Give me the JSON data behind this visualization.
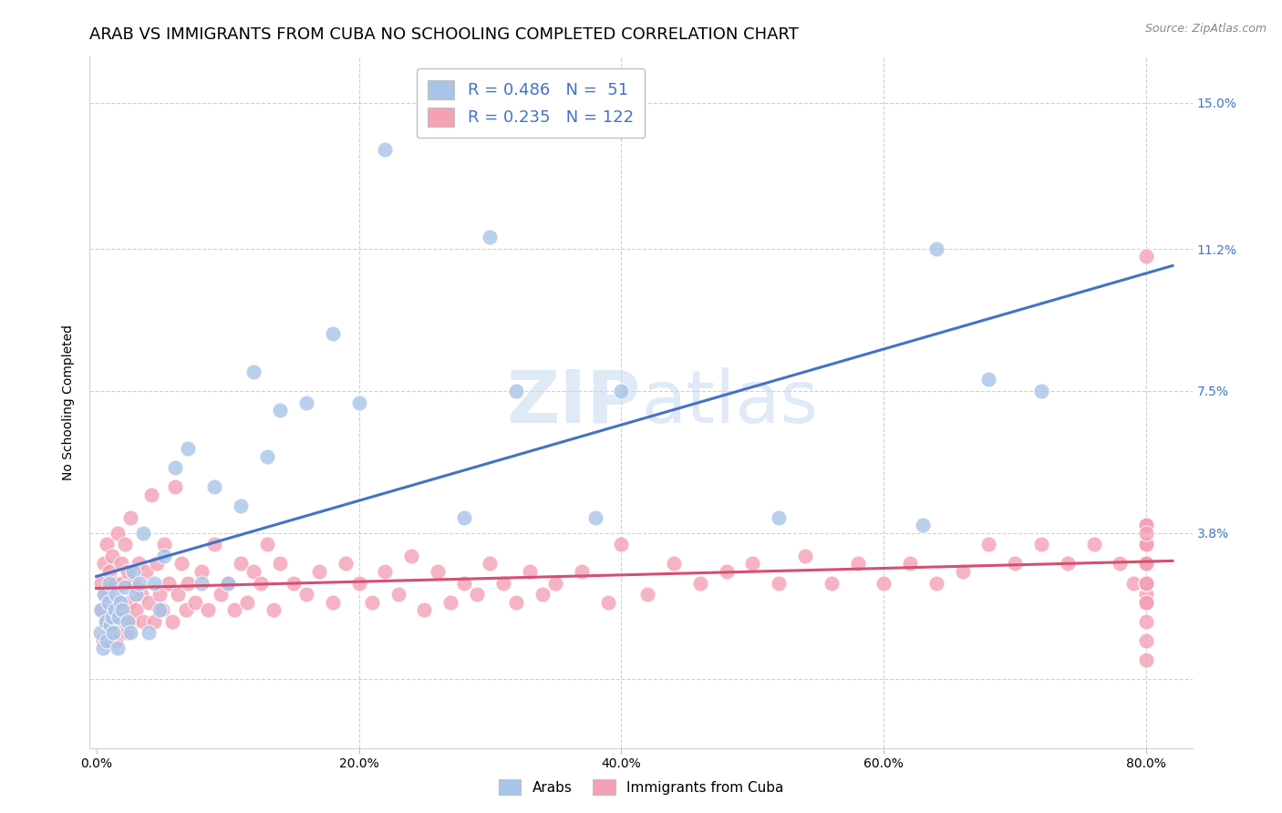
{
  "title": "ARAB VS IMMIGRANTS FROM CUBA NO SCHOOLING COMPLETED CORRELATION CHART",
  "source": "Source: ZipAtlas.com",
  "ylabel": "No Schooling Completed",
  "legend_labels": [
    "Arabs",
    "Immigrants from Cuba"
  ],
  "arab_R": "0.486",
  "arab_N": " 51",
  "cuba_R": "0.235",
  "cuba_N": "122",
  "arab_color": "#a8c4e8",
  "cuba_color": "#f4a0b5",
  "arab_line_color": "#4472c4",
  "cuba_line_color": "#d45070",
  "watermark_color": "#c8d8f0",
  "title_fontsize": 13,
  "axis_label_fontsize": 10,
  "tick_fontsize": 10,
  "legend_fontsize": 13,
  "ytick_vals": [
    0.0,
    0.038,
    0.075,
    0.112,
    0.15
  ],
  "ytick_labels": [
    "",
    "3.8%",
    "7.5%",
    "11.2%",
    "15.0%"
  ],
  "xtick_vals": [
    0.0,
    0.2,
    0.4,
    0.6,
    0.8
  ],
  "xtick_labels": [
    "0.0%",
    "",
    "",
    "",
    "80.0%"
  ],
  "xlim": [
    -0.005,
    0.835
  ],
  "ylim": [
    -0.018,
    0.162
  ],
  "arab_x": [
    0.003,
    0.004,
    0.005,
    0.006,
    0.007,
    0.008,
    0.009,
    0.01,
    0.011,
    0.012,
    0.013,
    0.014,
    0.015,
    0.016,
    0.017,
    0.018,
    0.02,
    0.022,
    0.024,
    0.026,
    0.028,
    0.03,
    0.033,
    0.036,
    0.04,
    0.044,
    0.048,
    0.052,
    0.06,
    0.07,
    0.08,
    0.09,
    0.1,
    0.11,
    0.12,
    0.13,
    0.14,
    0.16,
    0.18,
    0.2,
    0.22,
    0.28,
    0.3,
    0.32,
    0.38,
    0.4,
    0.52,
    0.63,
    0.64,
    0.68,
    0.72
  ],
  "arab_y": [
    0.012,
    0.018,
    0.008,
    0.022,
    0.015,
    0.01,
    0.02,
    0.025,
    0.014,
    0.016,
    0.012,
    0.018,
    0.022,
    0.008,
    0.016,
    0.02,
    0.018,
    0.024,
    0.015,
    0.012,
    0.028,
    0.022,
    0.025,
    0.038,
    0.012,
    0.025,
    0.018,
    0.032,
    0.055,
    0.06,
    0.025,
    0.05,
    0.025,
    0.045,
    0.08,
    0.058,
    0.07,
    0.072,
    0.09,
    0.072,
    0.138,
    0.042,
    0.115,
    0.075,
    0.042,
    0.075,
    0.042,
    0.04,
    0.112,
    0.078,
    0.075
  ],
  "cuba_x": [
    0.003,
    0.004,
    0.005,
    0.006,
    0.007,
    0.008,
    0.008,
    0.009,
    0.01,
    0.011,
    0.012,
    0.013,
    0.014,
    0.015,
    0.016,
    0.017,
    0.018,
    0.019,
    0.02,
    0.021,
    0.022,
    0.023,
    0.024,
    0.025,
    0.026,
    0.027,
    0.028,
    0.03,
    0.032,
    0.034,
    0.036,
    0.038,
    0.04,
    0.042,
    0.044,
    0.046,
    0.048,
    0.05,
    0.052,
    0.055,
    0.058,
    0.06,
    0.062,
    0.065,
    0.068,
    0.07,
    0.075,
    0.08,
    0.085,
    0.09,
    0.095,
    0.1,
    0.105,
    0.11,
    0.115,
    0.12,
    0.125,
    0.13,
    0.135,
    0.14,
    0.15,
    0.16,
    0.17,
    0.18,
    0.19,
    0.2,
    0.21,
    0.22,
    0.23,
    0.24,
    0.25,
    0.26,
    0.27,
    0.28,
    0.29,
    0.3,
    0.31,
    0.32,
    0.33,
    0.34,
    0.35,
    0.37,
    0.39,
    0.4,
    0.42,
    0.44,
    0.46,
    0.48,
    0.5,
    0.52,
    0.54,
    0.56,
    0.58,
    0.6,
    0.62,
    0.64,
    0.66,
    0.68,
    0.7,
    0.72,
    0.74,
    0.76,
    0.78,
    0.79,
    0.8,
    0.8,
    0.8,
    0.8,
    0.8,
    0.8,
    0.8,
    0.8,
    0.8,
    0.8,
    0.8,
    0.8,
    0.8,
    0.8,
    0.8,
    0.8,
    0.8,
    0.8
  ],
  "cuba_y": [
    0.018,
    0.025,
    0.01,
    0.03,
    0.022,
    0.015,
    0.035,
    0.02,
    0.028,
    0.012,
    0.032,
    0.018,
    0.025,
    0.01,
    0.038,
    0.02,
    0.015,
    0.03,
    0.025,
    0.018,
    0.035,
    0.012,
    0.028,
    0.02,
    0.042,
    0.015,
    0.025,
    0.018,
    0.03,
    0.022,
    0.015,
    0.028,
    0.02,
    0.048,
    0.015,
    0.03,
    0.022,
    0.018,
    0.035,
    0.025,
    0.015,
    0.05,
    0.022,
    0.03,
    0.018,
    0.025,
    0.02,
    0.028,
    0.018,
    0.035,
    0.022,
    0.025,
    0.018,
    0.03,
    0.02,
    0.028,
    0.025,
    0.035,
    0.018,
    0.03,
    0.025,
    0.022,
    0.028,
    0.02,
    0.03,
    0.025,
    0.02,
    0.028,
    0.022,
    0.032,
    0.018,
    0.028,
    0.02,
    0.025,
    0.022,
    0.03,
    0.025,
    0.02,
    0.028,
    0.022,
    0.025,
    0.028,
    0.02,
    0.035,
    0.022,
    0.03,
    0.025,
    0.028,
    0.03,
    0.025,
    0.032,
    0.025,
    0.03,
    0.025,
    0.03,
    0.025,
    0.028,
    0.035,
    0.03,
    0.035,
    0.03,
    0.035,
    0.03,
    0.025,
    0.022,
    0.03,
    0.02,
    0.025,
    0.015,
    0.005,
    0.01,
    0.025,
    0.02,
    0.03,
    0.035,
    0.04,
    0.11,
    0.03,
    0.025,
    0.035,
    0.04,
    0.038
  ]
}
